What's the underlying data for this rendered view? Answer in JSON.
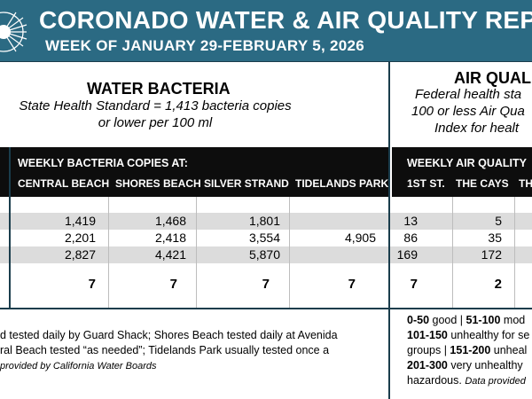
{
  "header": {
    "title": "CORONADO WATER & AIR QUALITY REPO",
    "subtitle": "WEEK OF JANUARY 29-FEBRUARY 5, 2026"
  },
  "water": {
    "title": "WATER BACTERIA",
    "standard_line1": "State Health Standard  = 1,413 bacteria copies",
    "standard_line2": "or lower per 100 ml",
    "group_label": "WEEKLY BACTERIA COPIES AT:",
    "columns": [
      "CENTRAL BEACH",
      "SHORES BEACH",
      "SILVER STRAND",
      "TIDELANDS PARK"
    ],
    "rows": [
      [
        "1,419",
        "1,468",
        "1,801",
        ""
      ],
      [
        "2,201",
        "2,418",
        "3,554",
        "4,905"
      ],
      [
        "2,827",
        "4,421",
        "5,870",
        ""
      ],
      [
        "7",
        "7",
        "7",
        "7"
      ]
    ],
    "note_line1": "d tested daily by Guard Shack; Shores Beach tested daily at Avenida",
    "note_line2": "ral Beach tested “as needed”; Tidelands Park usually tested once a",
    "note_source": "provided by California Water Boards"
  },
  "air": {
    "title": "AIR QUALIT",
    "standard_line1": "Federal health sta",
    "standard_line2": "100 or less Air Qua",
    "standard_line3": "Index for healt",
    "group_label": "WEEKLY AIR QUALITY",
    "columns": [
      "1ST ST.",
      "THE CAYS",
      "TH"
    ],
    "rows": [
      [
        "13",
        "5"
      ],
      [
        "86",
        "35"
      ],
      [
        "169",
        "172"
      ],
      [
        "7",
        "2"
      ]
    ],
    "legend": {
      "r1_range1": "0-50",
      "r1_text1": " good | ",
      "r1_range2": "51-100",
      "r1_text2": " mod",
      "r2_range": "101-150",
      "r2_text": " unhealthy for se",
      "r3_text1": "groups | ",
      "r3_range": "151-200",
      "r3_text2": " unheal",
      "r4_range": "201-300",
      "r4_text": " very unhealthy",
      "r5_text": "hazardous. ",
      "r5_source": "Data provided"
    }
  },
  "colors": {
    "header_bg": "#2b6a83",
    "bar_bg": "#0d0d0d",
    "row_shade": "#dcdcdc",
    "divider": "#1a3d4c"
  }
}
